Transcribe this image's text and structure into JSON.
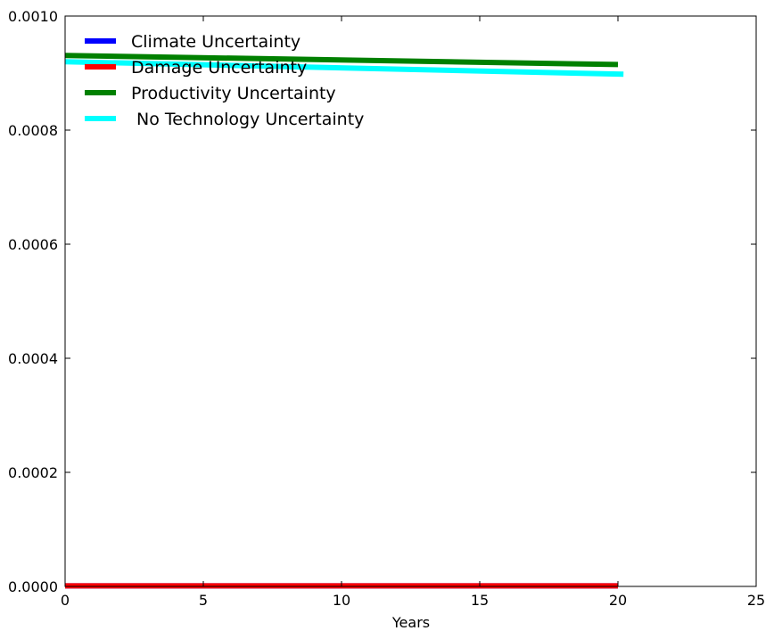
{
  "chart_data": {
    "type": "line",
    "title": "",
    "xlabel": "Years",
    "ylabel": "",
    "xlim": [
      0,
      25
    ],
    "ylim": [
      0,
      0.001
    ],
    "grid": false,
    "legend_placement": "top-left",
    "x_ticks": [
      0,
      5,
      10,
      15,
      20,
      25
    ],
    "x_tick_labels": [
      "0",
      "5",
      "10",
      "15",
      "20",
      "25"
    ],
    "y_ticks": [
      0,
      0.0002,
      0.0004,
      0.0006,
      0.0008,
      0.001
    ],
    "y_tick_labels": [
      "0.0000",
      "0.0002",
      "0.0004",
      "0.0006",
      "0.0008",
      "0.0010"
    ],
    "series": [
      {
        "name": "Climate Uncertainty",
        "color": "#0000ff",
        "x": [
          0,
          20
        ],
        "y": [
          1e-06,
          1e-06
        ]
      },
      {
        "name": "Damage Uncertainty",
        "color": "#ff0000",
        "x": [
          0,
          20
        ],
        "y": [
          1e-06,
          1e-06
        ]
      },
      {
        "name": "Productivity Uncertainty",
        "color": "#008000",
        "x": [
          0,
          20
        ],
        "y": [
          0.000931,
          0.000915
        ]
      },
      {
        "name": " No Technology Uncertainty",
        "color": "#00ffff",
        "x": [
          0,
          20.2
        ],
        "y": [
          0.00092,
          0.000898
        ]
      }
    ]
  }
}
